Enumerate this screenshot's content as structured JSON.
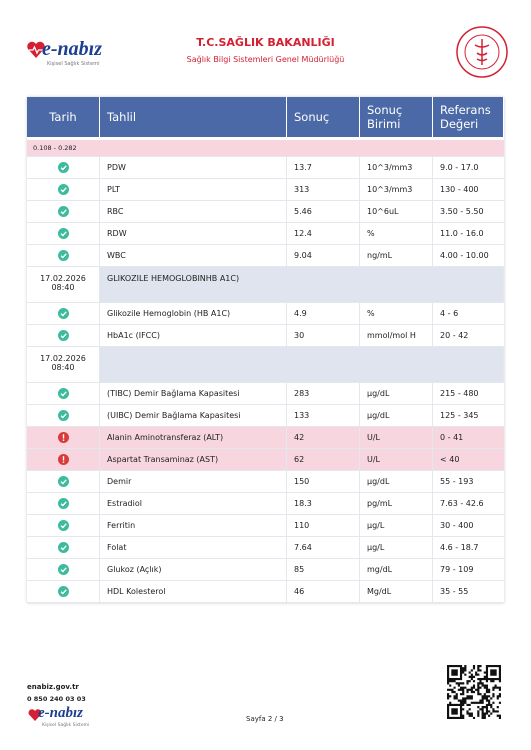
{
  "header": {
    "logo": "e-nabız",
    "logo_tagline": "Kişisel Sağlık Sistemi",
    "title": "T.C.SAĞLIK BAKANLIĞI",
    "subtitle": "Sağlık Bilgi Sistemleri Genel Müdürlüğü"
  },
  "table": {
    "columns": [
      "Tarih",
      "Tahlil",
      "Sonuç",
      "Sonuç Birimi",
      "Referans Değeri"
    ],
    "rows": [
      {
        "text": "0.108 - 0.282",
        "highlight": true
      },
      {
        "test": "PDW",
        "result": "13.7",
        "unit": "10^3/mm3",
        "reference": "9.0 - 17.0"
      },
      {
        "test": "PLT",
        "result": "313",
        "unit": "10^3/mm3",
        "reference": "130 - 400"
      },
      {
        "test": "RBC",
        "result": "5.46",
        "unit": "10^6uL",
        "reference": "3.50 - 5.50"
      },
      {
        "test": "RDW",
        "result": "12.4",
        "unit": "%",
        "reference": "11.0 - 16.0"
      },
      {
        "test": "WBC",
        "result": "9.04",
        "unit": "ng/mL",
        "reference": "4.00 - 10.00"
      },
      {
        "date": "17.02.2026",
        "time": "08:40",
        "group": "GLIKOZILE HEMOGLOBINHB A1C)"
      },
      {
        "test": "Glikozile Hemoglobin (HB A1C)",
        "result": "4.9",
        "unit": "%",
        "reference": "4 - 6"
      },
      {
        "test": "HbA1c (IFCC)",
        "result": "30",
        "unit": "mmol/mol H",
        "reference": "20 - 42"
      },
      {
        "date": "17.02.2026",
        "time": "08:40"
      },
      {
        "test": "(TIBC) Demir Bağlama Kapasitesi",
        "result": "283",
        "unit": "µg/dL",
        "reference": "215 - 480"
      },
      {
        "test": "(UIBC) Demir Bağlama Kapasitesi",
        "result": "133",
        "unit": "µg/dL",
        "reference": "125 - 345"
      },
      {
        "test": "Alanin Aminotransferaz (ALT)",
        "result": "42",
        "unit": "U/L",
        "reference": "0 - 41",
        "highlight": true
      },
      {
        "test": "Aspartat Transaminaz (AST)",
        "result": "62",
        "unit": "U/L",
        "reference": "< 40",
        "highlight": true
      },
      {
        "test": "Demir",
        "result": "150",
        "unit": "µg/dL",
        "reference": "55 - 193"
      },
      {
        "test": "Estradiol",
        "result": "18.3",
        "unit": "pg/mL",
        "reference": "7.63 - 42.6"
      },
      {
        "test": "Ferritin",
        "result": "110",
        "unit": "µg/L",
        "reference": "30 - 400"
      },
      {
        "test": "Folat",
        "result": "7.64",
        "unit": "µg/L",
        "reference": "4.6 - 18.7"
      },
      {
        "test": "Glukoz  (Açlık)",
        "result": "85",
        "unit": "mg/dL",
        "reference": "79 - 109"
      },
      {
        "test": "HDL Kolesterol",
        "result": "46",
        "unit": "Mg/dL",
        "reference": "35 - 55"
      }
    ]
  },
  "footer": {
    "website": "enabiz.gov.tr",
    "phone": "0 850 240 03 03",
    "logo": "e-nabız",
    "logo_tagline": "Kişisel Sağlık Sistemi",
    "page": "Sayfa 2 / 3"
  }
}
